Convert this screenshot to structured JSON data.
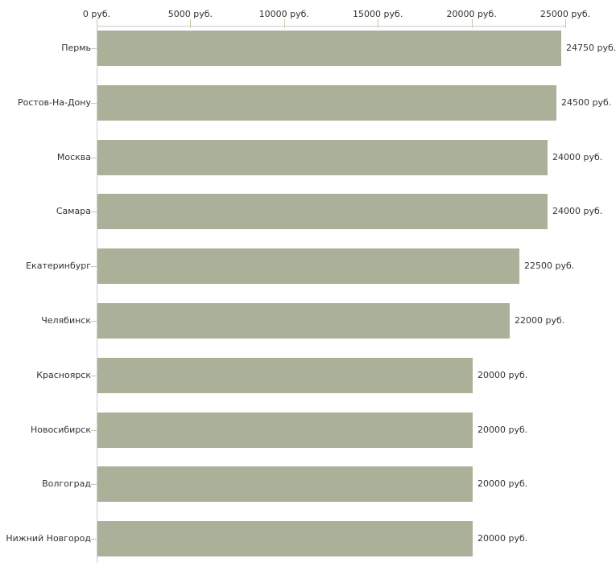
{
  "chart_data": {
    "type": "bar",
    "orientation": "horizontal",
    "title": "",
    "unit": "руб.",
    "categories": [
      "Пермь",
      "Ростов-На-Дону",
      "Москва",
      "Самара",
      "Екатеринбург",
      "Челябинск",
      "Красноярск",
      "Новосибирск",
      "Волгоград",
      "Нижний Новгород"
    ],
    "values": [
      24750,
      24500,
      24000,
      24000,
      22500,
      22000,
      20000,
      20000,
      20000,
      20000
    ],
    "value_labels": [
      "24750 руб.",
      "24500 руб.",
      "24000 руб.",
      "24000 руб.",
      "22500 руб.",
      "22000 руб.",
      "20000 руб.",
      "20000 руб.",
      "20000 руб.",
      "20000 руб."
    ],
    "x_axis": {
      "position": "top",
      "min": 0,
      "max": 25000,
      "tick_interval": 5000,
      "tick_values": [
        0,
        5000,
        10000,
        15000,
        20000,
        25000
      ],
      "tick_labels": [
        "0 руб.",
        "5000 руб.",
        "10000 руб.",
        "15000 руб.",
        "20000 руб.",
        "25000 руб."
      ]
    },
    "legend": null,
    "grid": false,
    "colors": {
      "bar": "#aab198",
      "axis_line": "#cccccc",
      "tick_mark": "#c9c9a2",
      "text": "#333333",
      "background": "#ffffff"
    }
  }
}
